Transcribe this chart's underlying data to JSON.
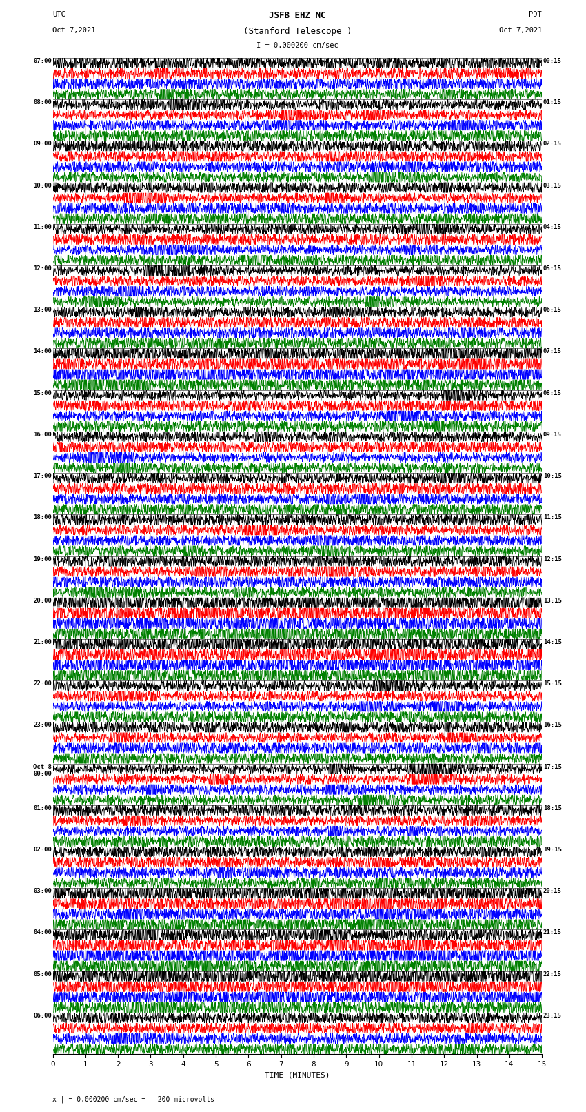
{
  "title_line1": "JSFB EHZ NC",
  "title_line2": "(Stanford Telescope )",
  "scale_label": "I = 0.000200 cm/sec",
  "bottom_label": "x | = 0.000200 cm/sec =   200 microvolts",
  "xlabel": "TIME (MINUTES)",
  "utc_line1": "UTC",
  "utc_line2": "Oct 7,2021",
  "pdt_line1": "PDT",
  "pdt_line2": "Oct 7,2021",
  "left_times": [
    "07:00",
    "08:00",
    "09:00",
    "10:00",
    "11:00",
    "12:00",
    "13:00",
    "14:00",
    "15:00",
    "16:00",
    "17:00",
    "18:00",
    "19:00",
    "20:00",
    "21:00",
    "22:00",
    "23:00",
    "Oct 8\n00:00",
    "01:00",
    "02:00",
    "03:00",
    "04:00",
    "05:00",
    "06:00"
  ],
  "right_times": [
    "00:15",
    "01:15",
    "02:15",
    "03:15",
    "04:15",
    "05:15",
    "06:15",
    "07:15",
    "08:15",
    "09:15",
    "10:15",
    "11:15",
    "12:15",
    "13:15",
    "14:15",
    "15:15",
    "16:15",
    "17:15",
    "18:15",
    "19:15",
    "20:15",
    "21:15",
    "22:15",
    "23:15"
  ],
  "n_rows": 24,
  "traces_per_row": 4,
  "colors": [
    "black",
    "red",
    "blue",
    "green"
  ],
  "bg_color": "white",
  "n_points": 1800,
  "fig_width": 8.5,
  "fig_height": 16.13,
  "dpi": 100
}
